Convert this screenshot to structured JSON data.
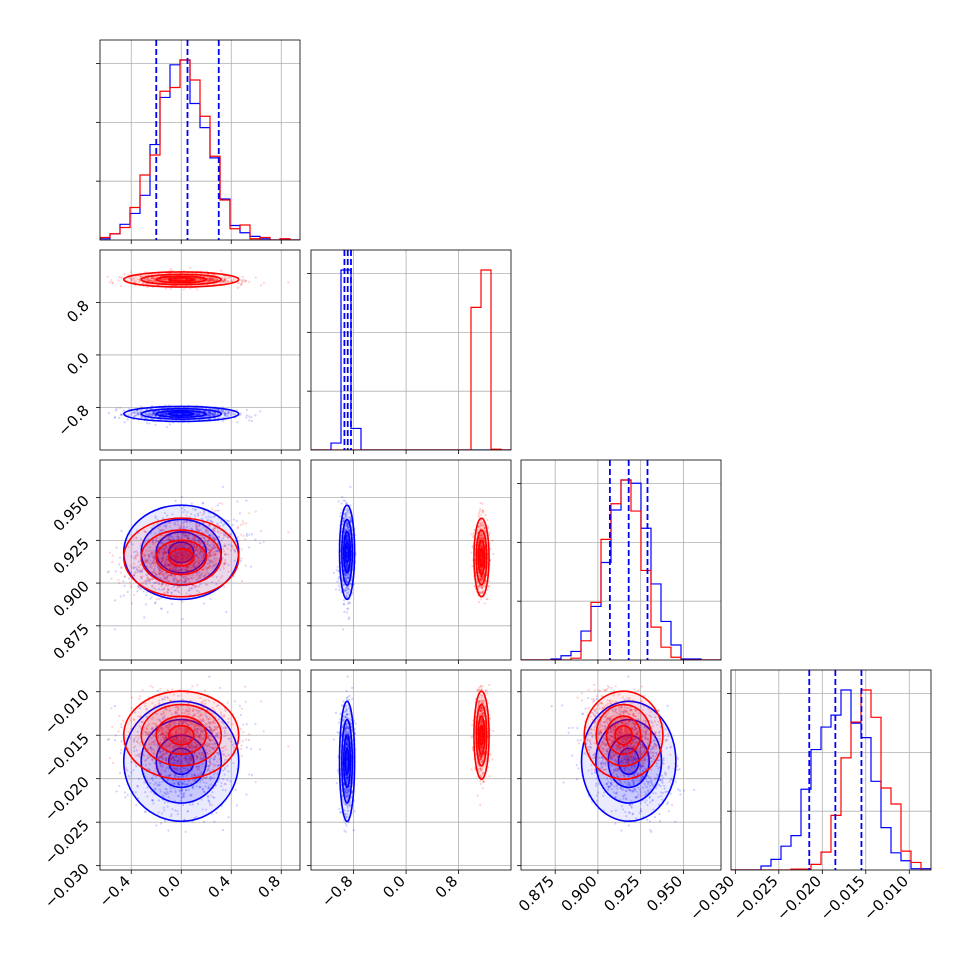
{
  "chart_data": {
    "type": "corner",
    "title": "",
    "grid": true,
    "colors": {
      "series_a": "#0000ff",
      "series_b": "#ff0000"
    },
    "series": [
      {
        "color": "#0000ff",
        "means": [
          0.0,
          -0.9,
          0.918,
          -0.018
        ],
        "stds": [
          0.2,
          0.05,
          0.012,
          0.003
        ],
        "quantile_lines": [
          [
            -0.2,
            0.05,
            0.3
          ],
          [
            -0.94,
            -0.89,
            -0.84
          ],
          [
            0.907,
            0.918,
            0.929
          ],
          [
            -0.0215,
            -0.0185,
            -0.0155
          ]
        ]
      },
      {
        "color": "#ff0000",
        "means": [
          0.0,
          1.15,
          0.915,
          -0.015
        ],
        "stds": [
          0.2,
          0.05,
          0.01,
          0.0022
        ]
      }
    ],
    "axes_ranges": [
      [
        -0.65,
        0.95
      ],
      [
        -1.45,
        1.6
      ],
      [
        0.855,
        0.972
      ],
      [
        -0.0305,
        -0.0075
      ]
    ],
    "x_ticks": [
      [
        -0.4,
        0.0,
        0.4,
        0.8
      ],
      [
        -0.8,
        0.0,
        0.8
      ],
      [
        0.875,
        0.9,
        0.925,
        0.95
      ],
      [
        -0.03,
        -0.025,
        -0.02,
        -0.015,
        -0.01
      ]
    ],
    "x_tick_labels": [
      [
        "−0.4",
        "0.0",
        "0.4",
        "0.8"
      ],
      [
        "−0.8",
        "0.0",
        "0.8"
      ],
      [
        "0.875",
        "0.900",
        "0.925",
        "0.950"
      ],
      [
        "−0.030",
        "−0.025",
        "−0.020",
        "−0.015",
        "−0.010"
      ]
    ],
    "y_ticks": [
      [],
      [
        -0.8,
        0.0,
        0.8
      ],
      [
        0.875,
        0.9,
        0.925,
        0.95
      ],
      [
        -0.03,
        -0.025,
        -0.02,
        -0.015,
        -0.01
      ]
    ],
    "y_tick_labels": [
      [],
      [
        "−0.8",
        "0.0",
        "0.8"
      ],
      [
        "0.875",
        "0.900",
        "0.925",
        "0.950"
      ],
      [
        "−0.030",
        "−0.025",
        "−0.020",
        "−0.015",
        "−0.010"
      ]
    ]
  }
}
